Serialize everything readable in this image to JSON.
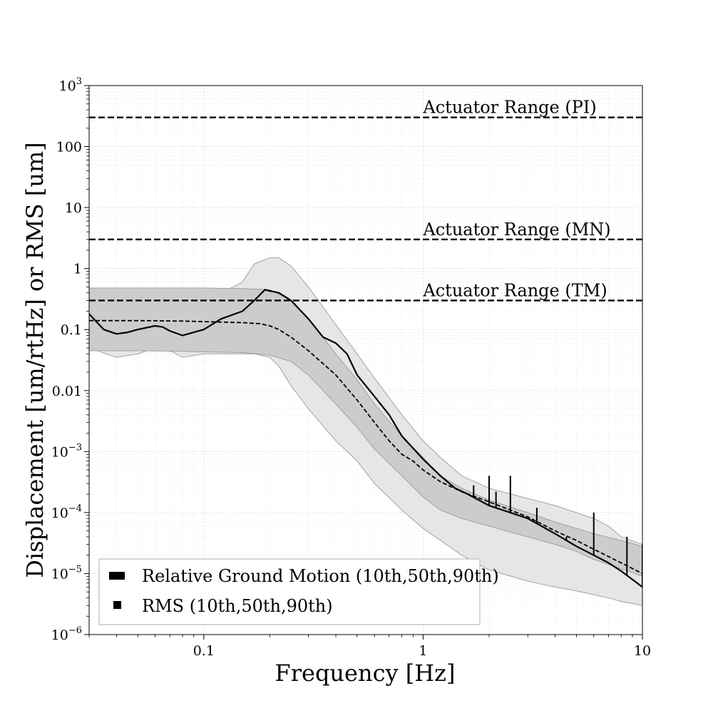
{
  "chart_data": {
    "type": "line",
    "title": "",
    "xlabel": "Frequency [Hz]",
    "ylabel": "Displacement [um/rtHz] or RMS [um]",
    "x_scale": "log",
    "y_scale": "log",
    "xlim": [
      0.03,
      10
    ],
    "ylim": [
      1e-06,
      1000
    ],
    "grid": true,
    "x_ticks": [
      {
        "value": 0.1,
        "label": "0.1"
      },
      {
        "value": 1,
        "label": "1"
      },
      {
        "value": 10,
        "label": "10"
      }
    ],
    "y_ticks": [
      {
        "value": 1e-06,
        "label": "10",
        "exp": "−6"
      },
      {
        "value": 1e-05,
        "label": "10",
        "exp": "−5"
      },
      {
        "value": 0.0001,
        "label": "10",
        "exp": "−4"
      },
      {
        "value": 0.001,
        "label": "10",
        "exp": "−3"
      },
      {
        "value": 0.01,
        "label": "0.01",
        "exp": ""
      },
      {
        "value": 0.1,
        "label": "0.1",
        "exp": ""
      },
      {
        "value": 1,
        "label": "1",
        "exp": ""
      },
      {
        "value": 10,
        "label": "10",
        "exp": ""
      },
      {
        "value": 100,
        "label": "100",
        "exp": ""
      },
      {
        "value": 1000,
        "label": "10",
        "exp": "3"
      }
    ],
    "legend": {
      "position": "bottom-left",
      "entries": [
        {
          "label": "Relative Ground Motion (10th,50th,90th)",
          "swatch": "thick"
        },
        {
          "label": "RMS (10th,50th,90th)",
          "swatch": "small"
        }
      ]
    },
    "reference_lines": [
      {
        "y": 300,
        "label": "Actuator Range (PI)",
        "label_x": 1.0
      },
      {
        "y": 3,
        "label": "Actuator Range (MN)",
        "label_x": 1.0
      },
      {
        "y": 0.3,
        "label": "Actuator Range (TM)",
        "label_x": 1.0
      }
    ],
    "bands": [
      {
        "name": "Relative Ground Motion 10th–90th",
        "color": "#e6e6e6",
        "edge": "#9a9a9a",
        "x": [
          0.03,
          0.04,
          0.05,
          0.06,
          0.07,
          0.08,
          0.1,
          0.12,
          0.15,
          0.17,
          0.2,
          0.22,
          0.25,
          0.3,
          0.4,
          0.5,
          0.6,
          0.8,
          1.0,
          1.2,
          1.5,
          2.0,
          3.0,
          4.0,
          5.0,
          6.0,
          7.0,
          8.0,
          10.0
        ],
        "lower": [
          0.05,
          0.035,
          0.04,
          0.05,
          0.045,
          0.035,
          0.04,
          0.04,
          0.04,
          0.04,
          0.035,
          0.025,
          0.012,
          0.005,
          0.0015,
          0.0007,
          0.0003,
          0.00011,
          5.5e-05,
          3.5e-05,
          2e-05,
          1.15e-05,
          7.5e-06,
          6e-06,
          5.2e-06,
          4.5e-06,
          4e-06,
          3.5e-06,
          3e-06
        ],
        "upper": [
          0.45,
          0.3,
          0.25,
          0.27,
          0.26,
          0.22,
          0.24,
          0.4,
          0.6,
          1.2,
          1.5,
          1.5,
          1.1,
          0.5,
          0.12,
          0.04,
          0.016,
          0.004,
          0.0015,
          0.0008,
          0.0004,
          0.00025,
          0.00017,
          0.00013,
          0.0001,
          8e-05,
          6e-05,
          4e-05,
          3e-05
        ]
      },
      {
        "name": "RMS 10th–90th",
        "color": "#cccccc",
        "edge": "#9a9a9a",
        "x": [
          0.03,
          0.05,
          0.08,
          0.1,
          0.15,
          0.2,
          0.25,
          0.3,
          0.4,
          0.5,
          0.6,
          0.8,
          1.0,
          1.2,
          1.5,
          2.0,
          3.0,
          4.0,
          5.0,
          6.0,
          8.0,
          10.0
        ],
        "lower": [
          0.045,
          0.045,
          0.044,
          0.043,
          0.042,
          0.038,
          0.03,
          0.018,
          0.006,
          0.0025,
          0.0011,
          0.0004,
          0.00018,
          0.00011,
          8e-05,
          6e-05,
          4e-05,
          3e-05,
          2.3e-05,
          1.7e-05,
          1.2e-05,
          9e-06
        ],
        "upper": [
          0.48,
          0.48,
          0.48,
          0.48,
          0.47,
          0.45,
          0.3,
          0.15,
          0.04,
          0.015,
          0.006,
          0.0018,
          0.0008,
          0.0004,
          0.00025,
          0.00016,
          0.0001,
          7e-05,
          5.5e-05,
          4.5e-05,
          3.5e-05,
          2.8e-05
        ]
      }
    ],
    "series": [
      {
        "name": "Relative Ground Motion (50th)",
        "style": "solid",
        "x": [
          0.03,
          0.035,
          0.04,
          0.045,
          0.05,
          0.06,
          0.065,
          0.07,
          0.08,
          0.09,
          0.1,
          0.12,
          0.15,
          0.17,
          0.19,
          0.2,
          0.22,
          0.25,
          0.3,
          0.35,
          0.4,
          0.45,
          0.5,
          0.6,
          0.7,
          0.8,
          1.0,
          1.2,
          1.4,
          1.6,
          2.0,
          2.5,
          3.0,
          4.0,
          5.0,
          6.0,
          7.0,
          8.0,
          9.0,
          10.0
        ],
        "y": [
          0.18,
          0.1,
          0.085,
          0.09,
          0.1,
          0.115,
          0.11,
          0.095,
          0.08,
          0.09,
          0.1,
          0.15,
          0.2,
          0.3,
          0.45,
          0.43,
          0.4,
          0.3,
          0.15,
          0.075,
          0.06,
          0.04,
          0.018,
          0.008,
          0.004,
          0.0018,
          0.00075,
          0.0004,
          0.00025,
          0.0002,
          0.00013,
          0.0001,
          8e-05,
          4.5e-05,
          2.8e-05,
          2e-05,
          1.5e-05,
          1.1e-05,
          8e-06,
          6e-06
        ],
        "spikes": [
          {
            "x": 1.7,
            "y": 0.00028
          },
          {
            "x": 2.0,
            "y": 0.0004
          },
          {
            "x": 2.15,
            "y": 0.00022
          },
          {
            "x": 2.5,
            "y": 0.0004
          },
          {
            "x": 3.3,
            "y": 0.00012
          },
          {
            "x": 4.5,
            "y": 4e-05
          },
          {
            "x": 6.0,
            "y": 0.0001
          },
          {
            "x": 8.5,
            "y": 4e-05
          },
          {
            "x": 10.0,
            "y": 3e-05
          }
        ]
      },
      {
        "name": "RMS (50th)",
        "style": "dashed",
        "x": [
          0.03,
          0.05,
          0.08,
          0.1,
          0.15,
          0.18,
          0.2,
          0.22,
          0.25,
          0.3,
          0.4,
          0.5,
          0.6,
          0.7,
          0.8,
          0.9,
          1.0,
          1.2,
          1.5,
          2.0,
          3.0,
          4.0,
          5.0,
          6.0,
          8.0,
          10.0
        ],
        "y": [
          0.14,
          0.14,
          0.138,
          0.135,
          0.13,
          0.125,
          0.115,
          0.1,
          0.075,
          0.045,
          0.018,
          0.007,
          0.003,
          0.0015,
          0.0009,
          0.0007,
          0.0005,
          0.00032,
          0.00022,
          0.00015,
          8.5e-05,
          5e-05,
          3.5e-05,
          2.5e-05,
          1.5e-05,
          1e-05
        ]
      }
    ]
  }
}
